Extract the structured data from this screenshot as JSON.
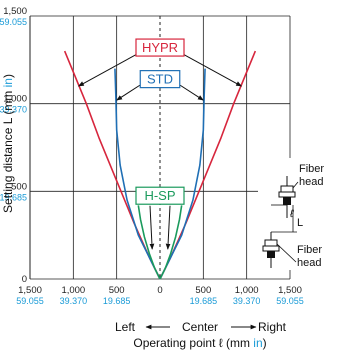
{
  "colors": {
    "hypr": "#d7263d",
    "std": "#1f6fb5",
    "hsp": "#1a9a5c",
    "inch": "#1a9bd7",
    "grid": "#222222"
  },
  "chart_data": {
    "type": "line",
    "ylabel_prefix": "Setting distance L (mm ",
    "ylabel_unit": "in",
    "ylabel_suffix": ")",
    "xlabel_prefix": "Operating point ℓ (mm ",
    "xlabel_unit": "in",
    "xlabel_suffix": ")",
    "direction_left": "Left",
    "direction_center": "Center",
    "direction_right": "Right",
    "xlim": [
      -1500,
      1500
    ],
    "ylim": [
      0,
      1500
    ],
    "x_ticks": [
      {
        "mm": "1,500",
        "in": "59.055",
        "v": -1500
      },
      {
        "mm": "1,000",
        "in": "39.370",
        "v": -1000
      },
      {
        "mm": "500",
        "in": "19.685",
        "v": -500
      },
      {
        "mm": "0",
        "in": "",
        "v": 0
      },
      {
        "mm": "500",
        "in": "19.685",
        "v": 500
      },
      {
        "mm": "1,000",
        "in": "39.370",
        "v": 1000
      },
      {
        "mm": "1,500",
        "in": "59.055",
        "v": 1500
      }
    ],
    "y_ticks": [
      {
        "mm": "0",
        "in": "",
        "v": 0
      },
      {
        "mm": "500",
        "in": "19.685",
        "v": 500
      },
      {
        "mm": "1,000",
        "in": "39.370",
        "v": 1000
      },
      {
        "mm": "1,500",
        "in": "59.055",
        "v": 1500
      }
    ],
    "series": [
      {
        "name": "HYPR",
        "color": "#d7263d",
        "left": [
          [
            0,
            0
          ],
          [
            -120,
            120
          ],
          [
            -300,
            320
          ],
          [
            -500,
            560
          ],
          [
            -700,
            800
          ],
          [
            -850,
            1000
          ],
          [
            -1000,
            1180
          ],
          [
            -1100,
            1300
          ]
        ],
        "right": [
          [
            0,
            0
          ],
          [
            120,
            120
          ],
          [
            300,
            320
          ],
          [
            500,
            560
          ],
          [
            700,
            800
          ],
          [
            850,
            1000
          ],
          [
            1000,
            1180
          ],
          [
            1100,
            1300
          ]
        ]
      },
      {
        "name": "STD",
        "color": "#1f6fb5",
        "left": [
          [
            0,
            0
          ],
          [
            -100,
            100
          ],
          [
            -250,
            250
          ],
          [
            -380,
            450
          ],
          [
            -460,
            650
          ],
          [
            -500,
            850
          ],
          [
            -510,
            1050
          ],
          [
            -520,
            1200
          ]
        ],
        "right": [
          [
            0,
            0
          ],
          [
            100,
            100
          ],
          [
            250,
            250
          ],
          [
            380,
            450
          ],
          [
            460,
            650
          ],
          [
            500,
            850
          ],
          [
            510,
            1050
          ],
          [
            520,
            1200
          ]
        ]
      },
      {
        "name": "H-SP",
        "color": "#1a9a5c",
        "left": [
          [
            0,
            0
          ],
          [
            -60,
            60
          ],
          [
            -120,
            140
          ],
          [
            -180,
            240
          ],
          [
            -225,
            340
          ],
          [
            -250,
            420
          ]
        ],
        "right": [
          [
            0,
            0
          ],
          [
            60,
            60
          ],
          [
            120,
            140
          ],
          [
            180,
            240
          ],
          [
            225,
            340
          ],
          [
            250,
            420
          ]
        ]
      }
    ],
    "inset": {
      "fiber_head_top": "Fiber\nhead",
      "fiber_head_bottom": "Fiber\nhead",
      "symbol_l_script": "ℓ",
      "symbol_L": "L"
    }
  }
}
